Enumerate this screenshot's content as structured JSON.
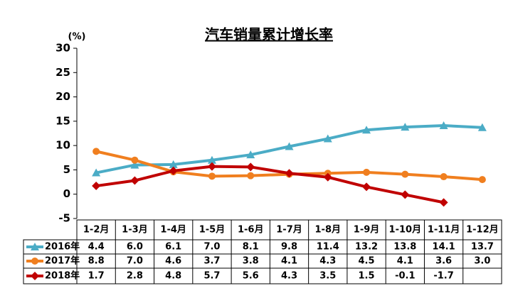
{
  "chart_data": {
    "type": "line",
    "title": "汽车销量累计增长率",
    "y_label": "(%)",
    "categories": [
      "1-2月",
      "1-3月",
      "1-4月",
      "1-5月",
      "1-6月",
      "1-7月",
      "1-8月",
      "1-9月",
      "1-10月",
      "1-11月",
      "1-12月"
    ],
    "ylim": [
      -5,
      30
    ],
    "yticks": [
      -5,
      0,
      5,
      10,
      15,
      20,
      25,
      30
    ],
    "grid": false,
    "series": [
      {
        "name": "2016年",
        "color": "#4bacc6",
        "marker": "triangle",
        "values": [
          4.4,
          6.0,
          6.1,
          7.0,
          8.1,
          9.8,
          11.4,
          13.2,
          13.8,
          14.1,
          13.7
        ],
        "value_labels": [
          "4.4",
          "6.0",
          "6.1",
          "7.0",
          "8.1",
          "9.8",
          "11.4",
          "13.2",
          "13.8",
          "14.1",
          "13.7"
        ]
      },
      {
        "name": "2017年",
        "color": "#f07f1f",
        "marker": "circle",
        "values": [
          8.8,
          7.0,
          4.6,
          3.7,
          3.8,
          4.1,
          4.3,
          4.5,
          4.1,
          3.6,
          3.0
        ],
        "value_labels": [
          "8.8",
          "7.0",
          "4.6",
          "3.7",
          "3.8",
          "4.1",
          "4.3",
          "4.5",
          "4.1",
          "3.6",
          "3.0"
        ]
      },
      {
        "name": "2018年",
        "color": "#c00000",
        "marker": "diamond",
        "values": [
          1.7,
          2.8,
          4.8,
          5.7,
          5.6,
          4.3,
          3.5,
          1.5,
          -0.1,
          -1.7,
          null
        ],
        "value_labels": [
          "1.7",
          "2.8",
          "4.8",
          "5.7",
          "5.6",
          "4.3",
          "3.5",
          "1.5",
          "-0.1",
          "-1.7",
          null
        ]
      }
    ]
  }
}
